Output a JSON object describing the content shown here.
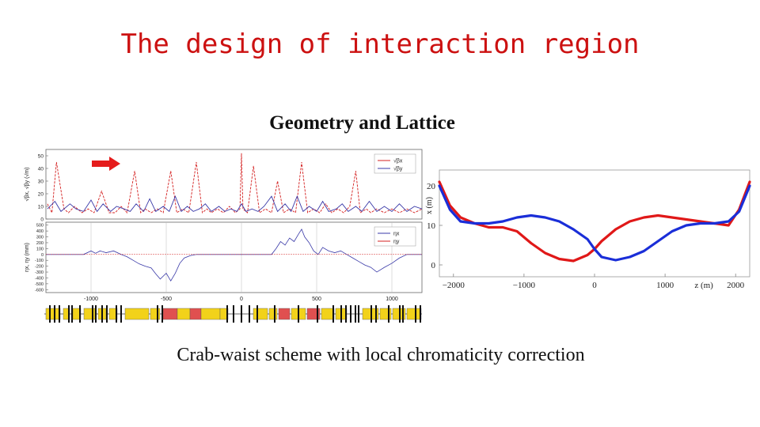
{
  "slide": {
    "title": "The design of interaction region",
    "subtitle": "Geometry and Lattice",
    "caption": "Crab-waist scheme with local chromaticity correction"
  },
  "colors": {
    "title": "#cc1111",
    "beta_x": "#d42020",
    "beta_y": "#3a3aa8",
    "orbit_red": "#e01818",
    "orbit_blue": "#1a2ed8",
    "magnet_yellow": "#f2d21a",
    "magnet_red": "#e05050"
  },
  "chart_data": [
    {
      "type": "line",
      "title": "",
      "ylabel": "√βx, √βy (√m)",
      "xlim": [
        -1300,
        1200
      ],
      "ylim": [
        0,
        55
      ],
      "yticks": [
        0,
        10,
        20,
        30,
        40,
        50
      ],
      "legend": [
        "√βx",
        "√βy"
      ],
      "legend_position": "top-right",
      "arrow_icon": "right-arrow-icon",
      "series": [
        {
          "name": "√βx",
          "x": [
            -1290,
            -1260,
            -1230,
            -1180,
            -1150,
            -1110,
            -1060,
            -1020,
            -980,
            -930,
            -880,
            -840,
            -800,
            -760,
            -710,
            -670,
            -640,
            -600,
            -560,
            -520,
            -470,
            -430,
            -390,
            -350,
            -300,
            -260,
            -230,
            -200,
            -160,
            -120,
            -80,
            -40,
            -10,
            0,
            10,
            40,
            80,
            120,
            160,
            200,
            240,
            280,
            320,
            360,
            400,
            440,
            480,
            520,
            560,
            600,
            640,
            680,
            720,
            760,
            790,
            830,
            860,
            900,
            950,
            1000,
            1050,
            1100,
            1150,
            1200
          ],
          "y": [
            12,
            5,
            45,
            8,
            5,
            10,
            5,
            8,
            5,
            22,
            5,
            5,
            10,
            5,
            38,
            5,
            8,
            5,
            8,
            5,
            38,
            5,
            8,
            5,
            45,
            5,
            8,
            5,
            8,
            5,
            10,
            5,
            8,
            52,
            8,
            5,
            42,
            5,
            8,
            5,
            30,
            5,
            8,
            5,
            45,
            5,
            8,
            5,
            12,
            5,
            8,
            5,
            10,
            38,
            5,
            8,
            5,
            8,
            5,
            8,
            5,
            8,
            5,
            8
          ]
        },
        {
          "name": "√βy",
          "x": [
            -1290,
            -1240,
            -1200,
            -1140,
            -1100,
            -1050,
            -1000,
            -960,
            -920,
            -870,
            -830,
            -780,
            -740,
            -700,
            -650,
            -610,
            -570,
            -520,
            -480,
            -440,
            -400,
            -360,
            -320,
            -280,
            -240,
            -200,
            -150,
            -110,
            -70,
            -30,
            0,
            30,
            70,
            110,
            150,
            200,
            240,
            290,
            330,
            370,
            410,
            450,
            500,
            540,
            580,
            630,
            670,
            710,
            760,
            800,
            850,
            900,
            950,
            1000,
            1050,
            1100,
            1150,
            1200
          ],
          "y": [
            8,
            14,
            6,
            12,
            8,
            6,
            15,
            6,
            12,
            6,
            10,
            8,
            6,
            12,
            6,
            16,
            6,
            10,
            6,
            18,
            6,
            10,
            6,
            8,
            12,
            6,
            10,
            6,
            8,
            6,
            12,
            6,
            8,
            6,
            10,
            18,
            6,
            12,
            6,
            18,
            6,
            10,
            6,
            14,
            6,
            8,
            12,
            6,
            10,
            6,
            14,
            6,
            10,
            6,
            12,
            6,
            10,
            8
          ]
        }
      ]
    },
    {
      "type": "line",
      "title": "",
      "ylabel": "ηx, ηy (mm)",
      "xlabel": "",
      "xlim": [
        -1300,
        1200
      ],
      "ylim": [
        -650,
        550
      ],
      "xticks": [
        -1000,
        -500,
        0,
        500,
        1000
      ],
      "yticks": [
        -600,
        -500,
        -400,
        -300,
        -200,
        -100,
        0,
        100,
        200,
        300,
        400,
        500
      ],
      "legend": [
        "ηx",
        "ηy"
      ],
      "legend_position": "top-right",
      "series": [
        {
          "name": "ηx",
          "x": [
            -1300,
            -1050,
            -1000,
            -970,
            -940,
            -900,
            -850,
            -800,
            -760,
            -720,
            -680,
            -640,
            -600,
            -570,
            -540,
            -500,
            -470,
            -440,
            -410,
            -380,
            -340,
            -300,
            -250,
            -200,
            -150,
            -100,
            -50,
            0,
            50,
            100,
            150,
            200,
            230,
            260,
            290,
            320,
            350,
            380,
            400,
            420,
            450,
            480,
            510,
            540,
            580,
            620,
            660,
            700,
            740,
            780,
            820,
            860,
            900,
            950,
            1000,
            1050,
            1100,
            1150,
            1200
          ],
          "y": [
            0,
            0,
            60,
            20,
            60,
            30,
            60,
            0,
            -40,
            -100,
            -160,
            -200,
            -230,
            -330,
            -420,
            -320,
            -450,
            -320,
            -150,
            -60,
            -20,
            0,
            0,
            0,
            0,
            0,
            0,
            0,
            0,
            0,
            0,
            0,
            100,
            220,
            160,
            280,
            220,
            350,
            430,
            300,
            200,
            60,
            0,
            120,
            60,
            30,
            60,
            0,
            -60,
            -120,
            -180,
            -220,
            -300,
            -220,
            -150,
            -60,
            0,
            0,
            0
          ]
        }
      ]
    },
    {
      "type": "line",
      "title": "",
      "xlabel": "z (m)",
      "ylabel": "x (m)",
      "xlim": [
        -2200,
        2200
      ],
      "ylim": [
        -3,
        24
      ],
      "xticks": [
        -2000,
        -1000,
        0,
        1000,
        2000
      ],
      "yticks": [
        0,
        10,
        20
      ],
      "series": [
        {
          "color_key": "orbit_red",
          "x": [
            -2200,
            -2050,
            -1900,
            -1700,
            -1500,
            -1300,
            -1100,
            -900,
            -700,
            -500,
            -300,
            -100,
            0,
            100,
            300,
            500,
            700,
            900,
            1100,
            1300,
            1500,
            1700,
            1900,
            2050,
            2200
          ],
          "y": [
            21,
            15,
            12,
            10.5,
            9.5,
            9.5,
            8.5,
            5.5,
            3,
            1.5,
            1,
            2.5,
            4,
            6,
            9,
            11,
            12,
            12.5,
            12,
            11.5,
            11,
            10.5,
            10,
            14,
            21
          ]
        },
        {
          "color_key": "orbit_blue",
          "x": [
            -2200,
            -2050,
            -1900,
            -1700,
            -1500,
            -1300,
            -1100,
            -900,
            -700,
            -500,
            -300,
            -100,
            0,
            100,
            300,
            500,
            700,
            900,
            1100,
            1300,
            1500,
            1700,
            1900,
            2050,
            2200
          ],
          "y": [
            20,
            14,
            11,
            10.5,
            10.5,
            11,
            12,
            12.5,
            12,
            11,
            9,
            6.5,
            4,
            2,
            1.2,
            2,
            3.5,
            6,
            8.5,
            10,
            10.5,
            10.5,
            11,
            13.5,
            20
          ]
        }
      ]
    }
  ]
}
